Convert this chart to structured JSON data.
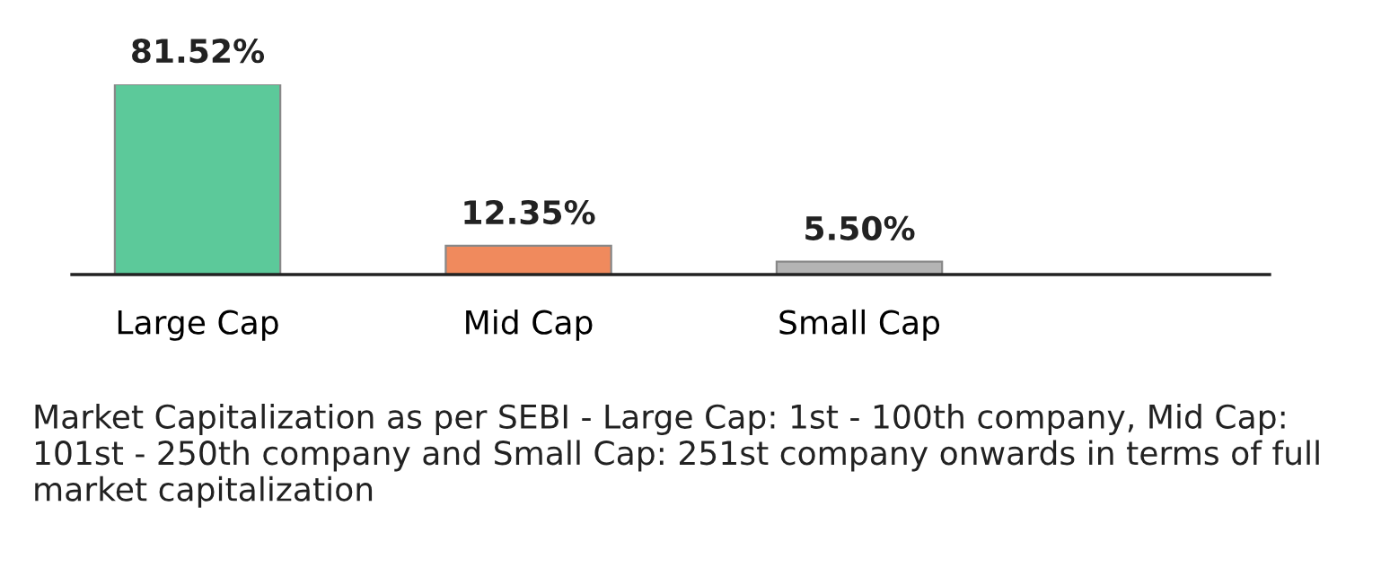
{
  "chart_data": {
    "type": "bar",
    "categories": [
      "Large Cap",
      "Mid Cap",
      "Small Cap"
    ],
    "values": [
      81.52,
      12.35,
      5.5
    ],
    "colors": [
      "#5cc99a",
      "#f08a5d",
      "#b4b4b4"
    ],
    "value_labels": [
      "81.52%",
      "12.35%",
      "5.50%"
    ],
    "annotations": [
      "Market Capitalization as per SEBI - Large Cap: 1st - 100th company, Mid Cap: 101st - 250th company and Small Cap: 251st company onwards in terms of full market capitalization"
    ]
  }
}
